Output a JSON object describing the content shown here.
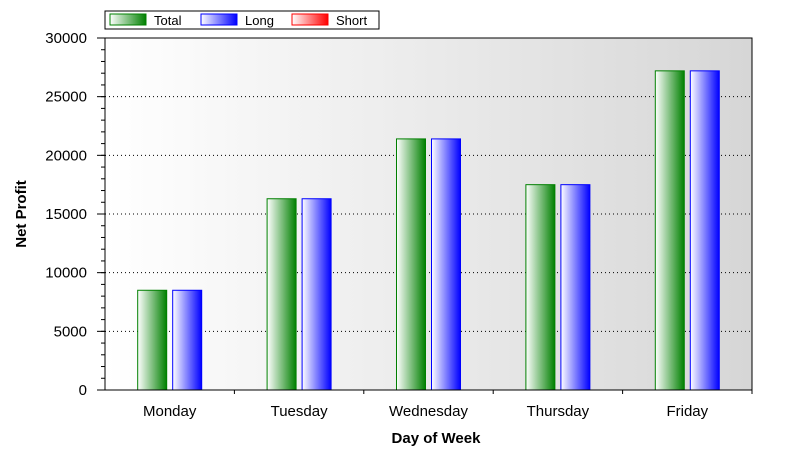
{
  "chart_data": {
    "type": "bar",
    "categories": [
      "Monday",
      "Tuesday",
      "Wednesday",
      "Thursday",
      "Friday"
    ],
    "series": [
      {
        "name": "Total",
        "values": [
          8500,
          16300,
          21400,
          17500,
          27200
        ],
        "color": "#008000"
      },
      {
        "name": "Long",
        "values": [
          8500,
          16300,
          21400,
          17500,
          27200
        ],
        "color": "#0000ff"
      },
      {
        "name": "Short",
        "values": [
          0,
          0,
          0,
          0,
          0
        ],
        "color": "#ff0000"
      }
    ],
    "xlabel": "Day of Week",
    "ylabel": "Net Profit",
    "ylim": [
      0,
      30000
    ],
    "yticks": [
      "0",
      "5000",
      "10000",
      "15000",
      "20000",
      "25000",
      "30000"
    ],
    "grid": true,
    "legend": "top-left"
  }
}
